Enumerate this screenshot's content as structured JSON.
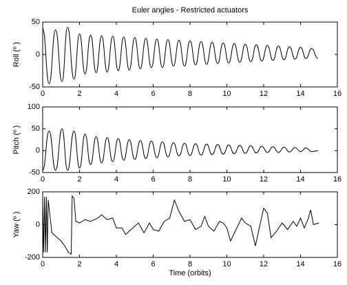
{
  "chart_data": [
    {
      "type": "line",
      "title": "Euler angles - Restricted actuators",
      "ylabel": "Roll (º )",
      "color": "#000000",
      "smooth": true,
      "xlim": [
        0,
        16
      ],
      "xticks": [
        0,
        2,
        4,
        6,
        8,
        10,
        12,
        14,
        16
      ],
      "ylim": [
        -50,
        50
      ],
      "yticks": [
        -50,
        0,
        50
      ],
      "x": [
        0,
        0.35,
        0.7,
        1.05,
        1.35,
        1.7,
        2.0,
        2.3,
        2.6,
        2.9,
        3.2,
        3.5,
        3.8,
        4.1,
        4.4,
        4.7,
        5.0,
        5.3,
        5.6,
        5.9,
        6.2,
        6.5,
        6.8,
        7.1,
        7.4,
        7.7,
        8.0,
        8.3,
        8.6,
        8.9,
        9.2,
        9.5,
        9.8,
        10.1,
        10.4,
        10.7,
        11.0,
        11.3,
        11.6,
        11.9,
        12.2,
        12.5,
        12.8,
        13.1,
        13.4,
        13.7,
        14.0,
        14.3,
        14.6,
        14.95
      ],
      "values": [
        40,
        -45,
        38,
        -42,
        42,
        -38,
        32,
        -30,
        30,
        -28,
        29,
        -27,
        28,
        -25,
        27,
        -24,
        26,
        -22,
        25,
        -20,
        24,
        -20,
        23,
        -18,
        22,
        -18,
        21,
        -16,
        20,
        -15,
        19,
        -14,
        18,
        -13,
        17,
        -12,
        16,
        -11,
        15,
        -10,
        14,
        -9,
        13,
        -8,
        12,
        -7,
        11,
        -6,
        9,
        -6
      ]
    },
    {
      "type": "line",
      "ylabel": "Pitch (º )",
      "color": "#000000",
      "smooth": true,
      "xlim": [
        0,
        16
      ],
      "xticks": [
        0,
        2,
        4,
        6,
        8,
        10,
        12,
        14,
        16
      ],
      "ylim": [
        -50,
        100
      ],
      "yticks": [
        -50,
        0,
        50,
        100
      ],
      "x": [
        0,
        0.35,
        0.7,
        1.05,
        1.35,
        1.7,
        2.0,
        2.3,
        2.6,
        2.9,
        3.2,
        3.5,
        3.8,
        4.1,
        4.4,
        4.7,
        5.0,
        5.3,
        5.6,
        5.9,
        6.2,
        6.5,
        6.8,
        7.1,
        7.4,
        7.7,
        8.0,
        8.3,
        8.6,
        8.9,
        9.2,
        9.5,
        9.8,
        10.1,
        10.4,
        10.7,
        11.0,
        11.3,
        11.6,
        11.9,
        12.2,
        12.5,
        12.8,
        13.1,
        13.4,
        13.7,
        14.0,
        14.3,
        14.6,
        14.95
      ],
      "values": [
        -45,
        45,
        -45,
        50,
        -45,
        45,
        -40,
        38,
        -32,
        32,
        -28,
        30,
        -25,
        28,
        -22,
        25,
        -20,
        23,
        -18,
        22,
        -16,
        20,
        -14,
        18,
        -12,
        17,
        -11,
        16,
        -10,
        15,
        -9,
        14,
        -8,
        13,
        -7,
        12,
        -6,
        11,
        -5,
        10,
        -4,
        9,
        -4,
        8,
        -3,
        7,
        -2,
        6,
        -2,
        0
      ]
    },
    {
      "type": "line",
      "ylabel": "Yaw (º )",
      "xlabel": "Time (orbits)",
      "color": "#000000",
      "smooth": false,
      "xlim": [
        0,
        16
      ],
      "xticks": [
        0,
        2,
        4,
        6,
        8,
        10,
        12,
        14,
        16
      ],
      "ylim": [
        -200,
        200
      ],
      "yticks": [
        -200,
        0,
        200
      ],
      "x": [
        0,
        0.05,
        0.1,
        0.15,
        0.2,
        0.25,
        0.3,
        0.5,
        0.8,
        1.0,
        1.2,
        1.4,
        1.55,
        1.6,
        1.7,
        1.8,
        2.0,
        2.3,
        2.6,
        3.0,
        3.2,
        3.5,
        3.8,
        4.0,
        4.3,
        4.5,
        4.8,
        5.2,
        5.5,
        5.8,
        6.0,
        6.3,
        6.6,
        6.9,
        7.15,
        7.4,
        7.7,
        8.0,
        8.3,
        8.6,
        8.8,
        9.0,
        9.3,
        9.6,
        9.8,
        10.0,
        10.2,
        10.5,
        10.8,
        11.0,
        11.3,
        11.55,
        11.8,
        12.0,
        12.2,
        12.4,
        12.7,
        13.0,
        13.3,
        13.6,
        13.8,
        14.0,
        14.2,
        14.4,
        14.55,
        14.7,
        15.0
      ],
      "values": [
        170,
        -170,
        170,
        -170,
        170,
        -170,
        150,
        -50,
        -80,
        -100,
        -130,
        -170,
        -180,
        175,
        160,
        20,
        10,
        30,
        20,
        40,
        60,
        30,
        40,
        -20,
        -20,
        -60,
        -30,
        10,
        -50,
        10,
        -30,
        -40,
        20,
        40,
        150,
        80,
        20,
        30,
        -30,
        -10,
        50,
        -10,
        -40,
        20,
        10,
        -20,
        -100,
        -30,
        40,
        10,
        -10,
        -130,
        0,
        100,
        70,
        -80,
        -40,
        10,
        -30,
        20,
        -10,
        40,
        -20,
        30,
        90,
        0,
        10
      ]
    }
  ]
}
